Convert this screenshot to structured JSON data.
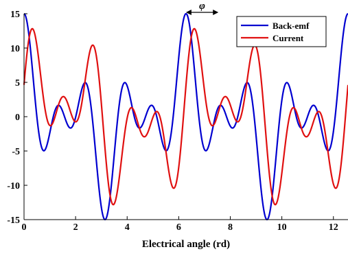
{
  "chart_data": {
    "type": "line",
    "xlabel": "Electrical angle (rd)",
    "ylabel": "",
    "xlim": [
      0,
      12.566
    ],
    "ylim": [
      -15,
      15
    ],
    "x_ticks": [
      "0",
      "2",
      "4",
      "6",
      "8",
      "10",
      "12"
    ],
    "y_ticks": [
      "15",
      "10",
      "5",
      "0",
      "-5",
      "-10",
      "-15"
    ],
    "grid": false,
    "legend_position": "top-right",
    "series": [
      {
        "name": "Back-emf",
        "color": "#0000d0",
        "harmonics": [
          [
            1,
            4.0,
            0
          ],
          [
            3,
            6.0,
            0
          ],
          [
            5,
            5.0,
            0
          ]
        ]
      },
      {
        "name": "Current",
        "color": "#e01010",
        "harmonics": [
          [
            1,
            4.0,
            -1.2566
          ],
          [
            3,
            6.0,
            -1.2566
          ],
          [
            5,
            5.0,
            -1.2566
          ]
        ]
      }
    ],
    "annotation": {
      "text": "φ",
      "arrow_from_x": 6.28,
      "arrow_to_x": 7.54,
      "y": 15.2
    }
  }
}
